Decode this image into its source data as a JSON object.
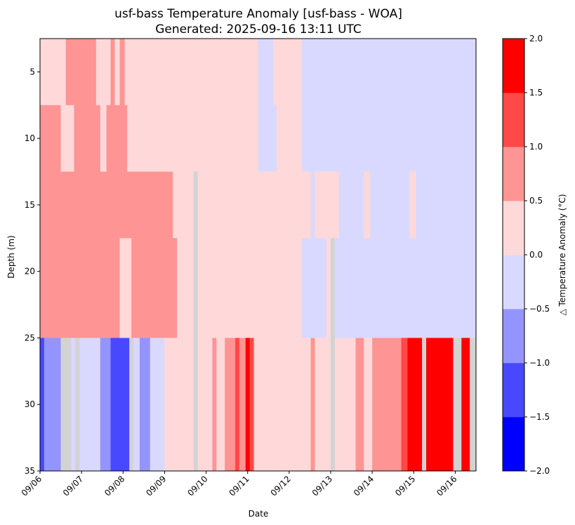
{
  "chart_data": {
    "type": "heatmap",
    "title": "usf-bass Temperature Anomaly [usf-bass - WOA]",
    "subtitle": "Generated: 2025-09-16 13:11 UTC",
    "xlabel": "Date",
    "ylabel": "Depth (m)",
    "colorbar_label": "△ Temperature Anomaly (°C)",
    "x_range": [
      0.0,
      10.5
    ],
    "x_ticks": [
      {
        "pos": 0,
        "label": "09/06"
      },
      {
        "pos": 1,
        "label": "09/07"
      },
      {
        "pos": 2,
        "label": "09/08"
      },
      {
        "pos": 3,
        "label": "09/09"
      },
      {
        "pos": 4,
        "label": "09/10"
      },
      {
        "pos": 5,
        "label": "09/11"
      },
      {
        "pos": 6,
        "label": "09/12"
      },
      {
        "pos": 7,
        "label": "09/13"
      },
      {
        "pos": 8,
        "label": "09/14"
      },
      {
        "pos": 9,
        "label": "09/15"
      },
      {
        "pos": 10,
        "label": "09/16"
      }
    ],
    "y_range": [
      2.5,
      35
    ],
    "y_inverted": true,
    "y_ticks": [
      5,
      10,
      15,
      20,
      25,
      30,
      35
    ],
    "color_levels": [
      -2.0,
      -1.5,
      -1.0,
      -0.5,
      0.0,
      0.5,
      1.0,
      1.5,
      2.0
    ],
    "colorbar_ticks": [
      "2.0",
      "1.5",
      "1.0",
      "0.5",
      "0.0",
      "−0.5",
      "−1.0",
      "−1.5",
      "−2.0"
    ],
    "bin_colors": [
      "#0000ff",
      "#4848ff",
      "#9494ff",
      "#d9d9ff",
      "#ffd9d9",
      "#ff9494",
      "#ff4848",
      "#ff0000"
    ],
    "missing_color": "#d3d3d3",
    "depth_bands": [
      {
        "depth": [
          2.5,
          7.5
        ],
        "segments": [
          [
            0.0,
            0.62,
            0.25
          ],
          [
            0.62,
            1.35,
            0.75
          ],
          [
            1.35,
            1.7,
            0.25
          ],
          [
            1.7,
            1.8,
            0.75
          ],
          [
            1.8,
            1.92,
            0.25
          ],
          [
            1.92,
            2.04,
            0.75
          ],
          [
            2.04,
            5.25,
            0.25
          ],
          [
            5.25,
            5.62,
            -0.25
          ],
          [
            5.62,
            6.3,
            0.25
          ],
          [
            6.3,
            10.5,
            -0.25
          ]
        ]
      },
      {
        "depth": [
          7.5,
          12.5
        ],
        "segments": [
          [
            0.0,
            0.5,
            0.75
          ],
          [
            0.5,
            0.82,
            0.25
          ],
          [
            0.82,
            1.45,
            0.75
          ],
          [
            1.45,
            1.6,
            0.25
          ],
          [
            1.6,
            2.1,
            0.75
          ],
          [
            2.1,
            2.25,
            0.25
          ],
          [
            2.25,
            5.25,
            0.25
          ],
          [
            5.25,
            5.7,
            -0.25
          ],
          [
            5.7,
            6.3,
            0.25
          ],
          [
            6.3,
            10.5,
            -0.25
          ]
        ]
      },
      {
        "depth": [
          12.5,
          17.5
        ],
        "segments": [
          [
            0.0,
            3.2,
            0.75
          ],
          [
            3.2,
            3.7,
            0.25
          ],
          [
            3.7,
            3.8,
            null
          ],
          [
            3.8,
            6.52,
            0.25
          ],
          [
            6.52,
            6.62,
            -0.25
          ],
          [
            6.62,
            7.2,
            0.25
          ],
          [
            7.2,
            7.8,
            -0.25
          ],
          [
            7.8,
            7.95,
            0.25
          ],
          [
            7.95,
            8.9,
            -0.25
          ],
          [
            8.9,
            9.05,
            0.25
          ],
          [
            9.05,
            10.5,
            -0.25
          ]
        ]
      },
      {
        "depth": [
          17.5,
          25
        ],
        "segments": [
          [
            0.0,
            1.92,
            0.75
          ],
          [
            1.92,
            2.2,
            0.25
          ],
          [
            2.2,
            3.3,
            0.75
          ],
          [
            3.3,
            3.7,
            0.25
          ],
          [
            3.7,
            3.8,
            null
          ],
          [
            3.8,
            6.3,
            0.25
          ],
          [
            6.3,
            6.9,
            -0.25
          ],
          [
            6.9,
            7.0,
            0.25
          ],
          [
            7.0,
            7.1,
            null
          ],
          [
            7.1,
            10.5,
            -0.25
          ]
        ]
      },
      {
        "depth": [
          25,
          35
        ],
        "segments": [
          [
            0.0,
            0.1,
            -1.25
          ],
          [
            0.1,
            0.5,
            -0.75
          ],
          [
            0.5,
            0.75,
            null
          ],
          [
            0.75,
            0.85,
            -0.25
          ],
          [
            0.85,
            0.95,
            null
          ],
          [
            0.95,
            1.1,
            -0.25
          ],
          [
            1.1,
            1.45,
            -0.25
          ],
          [
            1.45,
            1.7,
            -0.75
          ],
          [
            1.7,
            2.15,
            -1.25
          ],
          [
            2.15,
            2.25,
            null
          ],
          [
            2.25,
            2.4,
            -0.25
          ],
          [
            2.4,
            2.65,
            -0.75
          ],
          [
            2.65,
            3.0,
            -0.25
          ],
          [
            3.0,
            3.7,
            0.25
          ],
          [
            3.7,
            3.8,
            null
          ],
          [
            3.8,
            4.15,
            0.25
          ],
          [
            4.15,
            4.25,
            0.75
          ],
          [
            4.25,
            4.45,
            0.25
          ],
          [
            4.45,
            4.7,
            0.75
          ],
          [
            4.7,
            4.8,
            1.25
          ],
          [
            4.8,
            4.95,
            0.75
          ],
          [
            4.95,
            5.05,
            1.75
          ],
          [
            5.05,
            5.15,
            1.25
          ],
          [
            5.15,
            6.52,
            0.25
          ],
          [
            6.52,
            6.62,
            0.75
          ],
          [
            6.62,
            7.0,
            0.25
          ],
          [
            7.0,
            7.1,
            null
          ],
          [
            7.1,
            7.6,
            0.25
          ],
          [
            7.6,
            7.8,
            0.75
          ],
          [
            7.8,
            8.0,
            0.25
          ],
          [
            8.0,
            8.7,
            0.75
          ],
          [
            8.7,
            8.85,
            1.25
          ],
          [
            8.85,
            9.2,
            1.75
          ],
          [
            9.2,
            9.3,
            null
          ],
          [
            9.3,
            9.95,
            1.75
          ],
          [
            9.95,
            10.15,
            null
          ],
          [
            10.15,
            10.35,
            1.75
          ],
          [
            10.35,
            10.5,
            null
          ]
        ]
      }
    ]
  }
}
